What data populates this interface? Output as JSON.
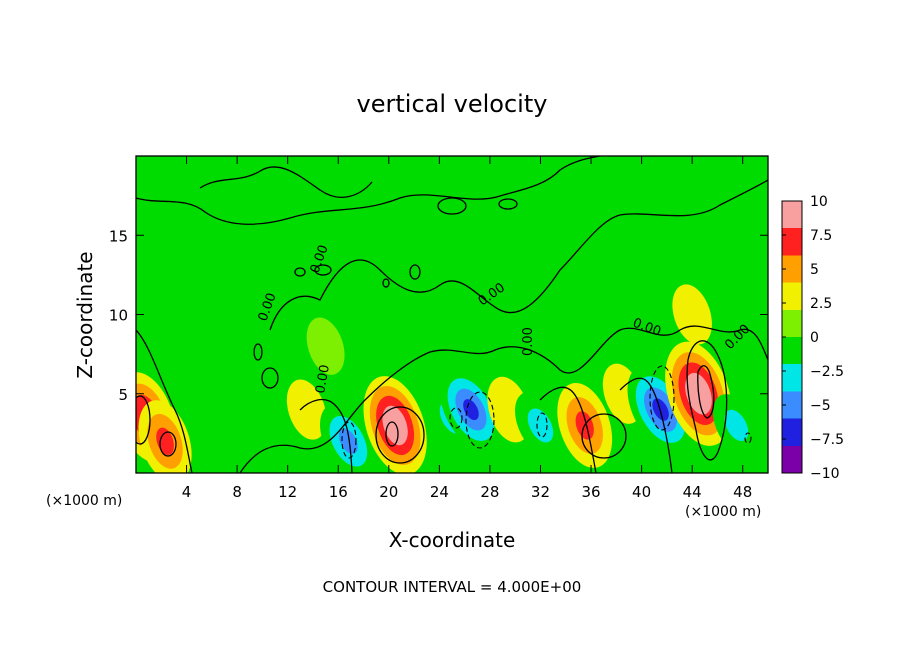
{
  "chart_data": {
    "type": "heatmap",
    "title": "vertical velocity",
    "xlabel": "X-coordinate",
    "ylabel": "Z-coordinate",
    "x_unit_label_left": "(×1000 m)",
    "x_unit_label_right": "(×1000 m)",
    "xlim": [
      0,
      50
    ],
    "ylim": [
      0,
      20
    ],
    "x_ticks": [
      4,
      8,
      12,
      16,
      20,
      24,
      28,
      32,
      36,
      40,
      44,
      48
    ],
    "x_tick_labels": [
      "4",
      "8",
      "12",
      "16",
      "20",
      "24",
      "28",
      "32",
      "36",
      "40",
      "44",
      "48"
    ],
    "y_ticks": [
      5,
      10,
      15
    ],
    "y_tick_labels": [
      "5",
      "10",
      "15"
    ],
    "colorbar": {
      "min": -10,
      "max": 10,
      "tick_values": [
        10,
        7.5,
        5,
        2.5,
        0,
        -2.5,
        -5,
        -7.5,
        -10
      ],
      "tick_labels": [
        "10",
        "7.5",
        "5",
        "2.5",
        "0",
        "−2.5",
        "−5",
        "−7.5",
        "−10"
      ],
      "colors": [
        "#7b00a8",
        "#2020e0",
        "#3a8cff",
        "#00e6e6",
        "#00dc00",
        "#7cf000",
        "#f0f000",
        "#ffa000",
        "#ff2020",
        "#f8a0a0"
      ]
    },
    "contour_labels": [
      "0.00",
      "0.00",
      "0.00",
      "0.00",
      "0.00",
      "0.00",
      "0.00"
    ],
    "footer": "CONTOUR INTERVAL = 4.000E+00",
    "features": [
      {
        "x": 0.8,
        "z": 3.5,
        "value": 7.5
      },
      {
        "x": 2.3,
        "z": 2.0,
        "value": 6.0
      },
      {
        "x": 4.5,
        "z": 4.5,
        "value": -2.5
      },
      {
        "x": 9.0,
        "z": 6.0,
        "value": -1.5
      },
      {
        "x": 13.5,
        "z": 4.0,
        "value": 2.0
      },
      {
        "x": 16.8,
        "z": 2.0,
        "value": -5.5
      },
      {
        "x": 20.5,
        "z": 3.0,
        "value": 9.0
      },
      {
        "x": 25.0,
        "z": 3.5,
        "value": -3.5
      },
      {
        "x": 26.5,
        "z": 4.0,
        "value": -7.0
      },
      {
        "x": 29.5,
        "z": 4.0,
        "value": 3.0
      },
      {
        "x": 32.0,
        "z": 3.0,
        "value": -4.0
      },
      {
        "x": 35.5,
        "z": 3.0,
        "value": 6.5
      },
      {
        "x": 38.5,
        "z": 5.0,
        "value": 2.0
      },
      {
        "x": 41.5,
        "z": 4.0,
        "value": -8.0
      },
      {
        "x": 44.5,
        "z": 5.0,
        "value": 10.0
      },
      {
        "x": 47.5,
        "z": 3.0,
        "value": -3.0
      },
      {
        "x": 44.0,
        "z": 10.0,
        "value": 2.0
      },
      {
        "x": 15.0,
        "z": 8.0,
        "value": 1.5
      }
    ]
  }
}
